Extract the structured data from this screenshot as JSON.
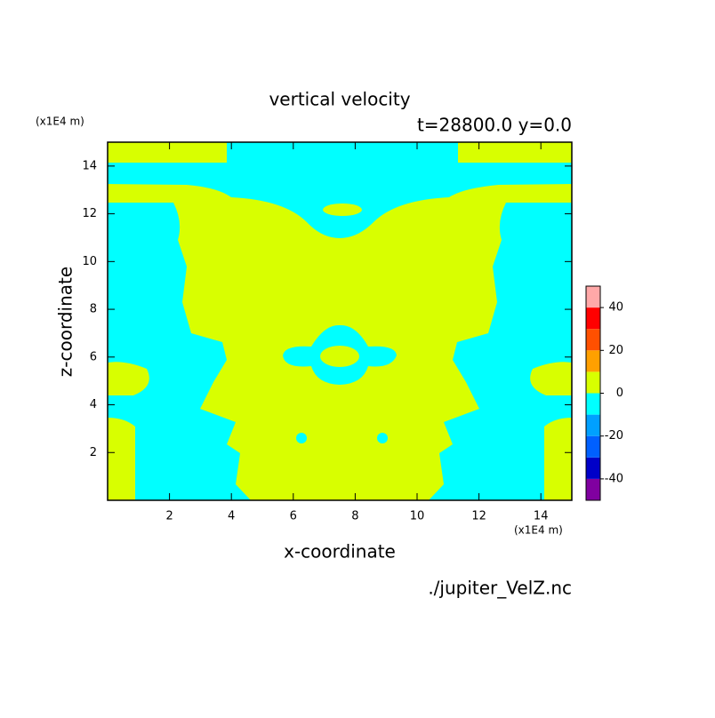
{
  "chart_data": {
    "type": "contour",
    "title": "vertical velocity",
    "subtitle": "t=28800.0 y=0.0",
    "xlabel": "x-coordinate",
    "ylabel": "z-coordinate",
    "x_unit": "(x1E4 m)",
    "y_unit": "(x1E4 m)",
    "source": "./jupiter_VelZ.nc",
    "xlim": [
      0,
      15
    ],
    "ylim": [
      0,
      15
    ],
    "xticks": [
      2,
      4,
      6,
      8,
      10,
      12,
      14
    ],
    "yticks": [
      2,
      4,
      6,
      8,
      10,
      12,
      14
    ],
    "colorbar": {
      "levels": [
        -50,
        -40,
        -30,
        -20,
        -10,
        0,
        10,
        20,
        30,
        40,
        50
      ],
      "colors": [
        "#8000a0",
        "#0000c8",
        "#0060ff",
        "#00a0ff",
        "#00ffff",
        "#d8ff00",
        "#ffa000",
        "#ff5000",
        "#ff0000",
        "#ffa8a8"
      ],
      "ticks": [
        -40,
        -20,
        0,
        20,
        40
      ]
    }
  }
}
